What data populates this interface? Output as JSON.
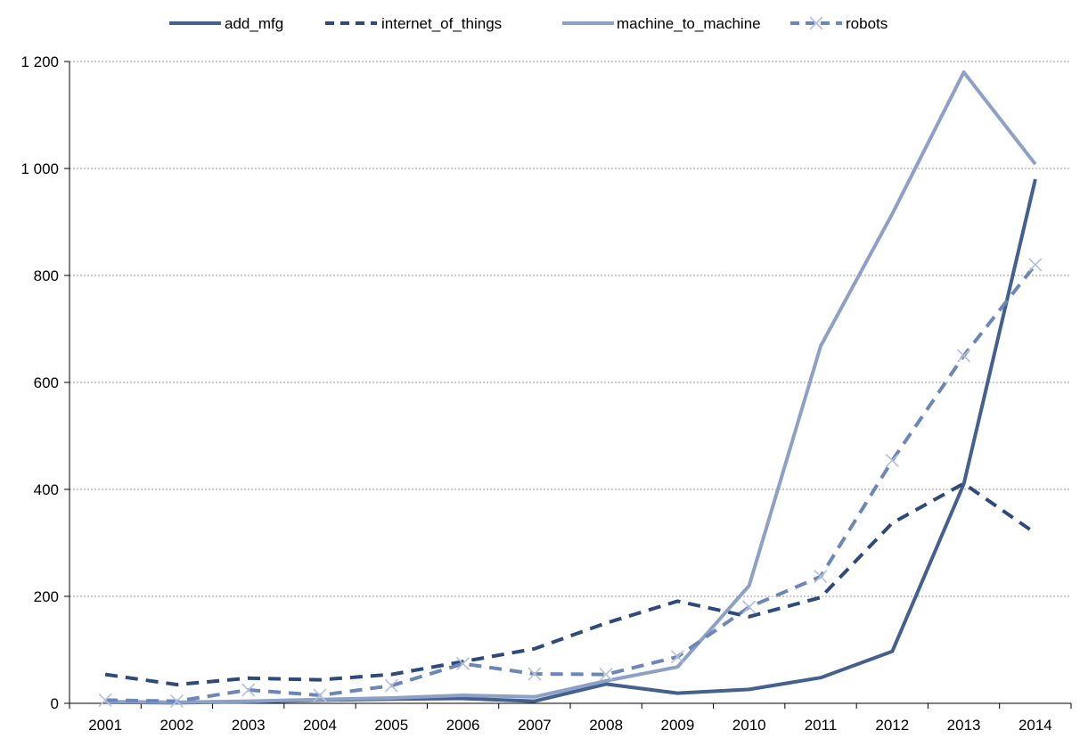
{
  "chart_data": {
    "type": "line",
    "categories": [
      "2001",
      "2002",
      "2003",
      "2004",
      "2005",
      "2006",
      "2007",
      "2008",
      "2009",
      "2010",
      "2011",
      "2012",
      "2013",
      "2014"
    ],
    "ylim": [
      0,
      1200
    ],
    "yticks": [
      0,
      200,
      400,
      600,
      800,
      1000,
      1200
    ],
    "ytick_labels": [
      "0",
      "200",
      "400",
      "600",
      "800",
      "1 000",
      "1 200"
    ],
    "grid": true,
    "legend_position": "top",
    "series": [
      {
        "name": "add_mfg",
        "values": [
          2,
          1,
          3,
          6,
          8,
          9,
          4,
          36,
          19,
          26,
          48,
          97,
          410,
          980
        ],
        "color": "#44608f",
        "dash": "solid",
        "marker": "none"
      },
      {
        "name": "internet_of_things",
        "values": [
          54,
          35,
          47,
          44,
          54,
          78,
          102,
          150,
          191,
          162,
          198,
          337,
          411,
          318
        ],
        "color": "#2e4a7a",
        "dash": "dashed",
        "marker": "none"
      },
      {
        "name": "machine_to_machine",
        "values": [
          3,
          2,
          4,
          7,
          10,
          15,
          12,
          42,
          68,
          220,
          668,
          915,
          1180,
          1008
        ],
        "color": "#8da0c6",
        "dash": "solid",
        "marker": "none"
      },
      {
        "name": "robots",
        "values": [
          6,
          4,
          25,
          15,
          33,
          74,
          55,
          54,
          87,
          180,
          237,
          454,
          650,
          820
        ],
        "color": "#6b87b8",
        "dash": "dashed",
        "marker": "x"
      }
    ]
  }
}
